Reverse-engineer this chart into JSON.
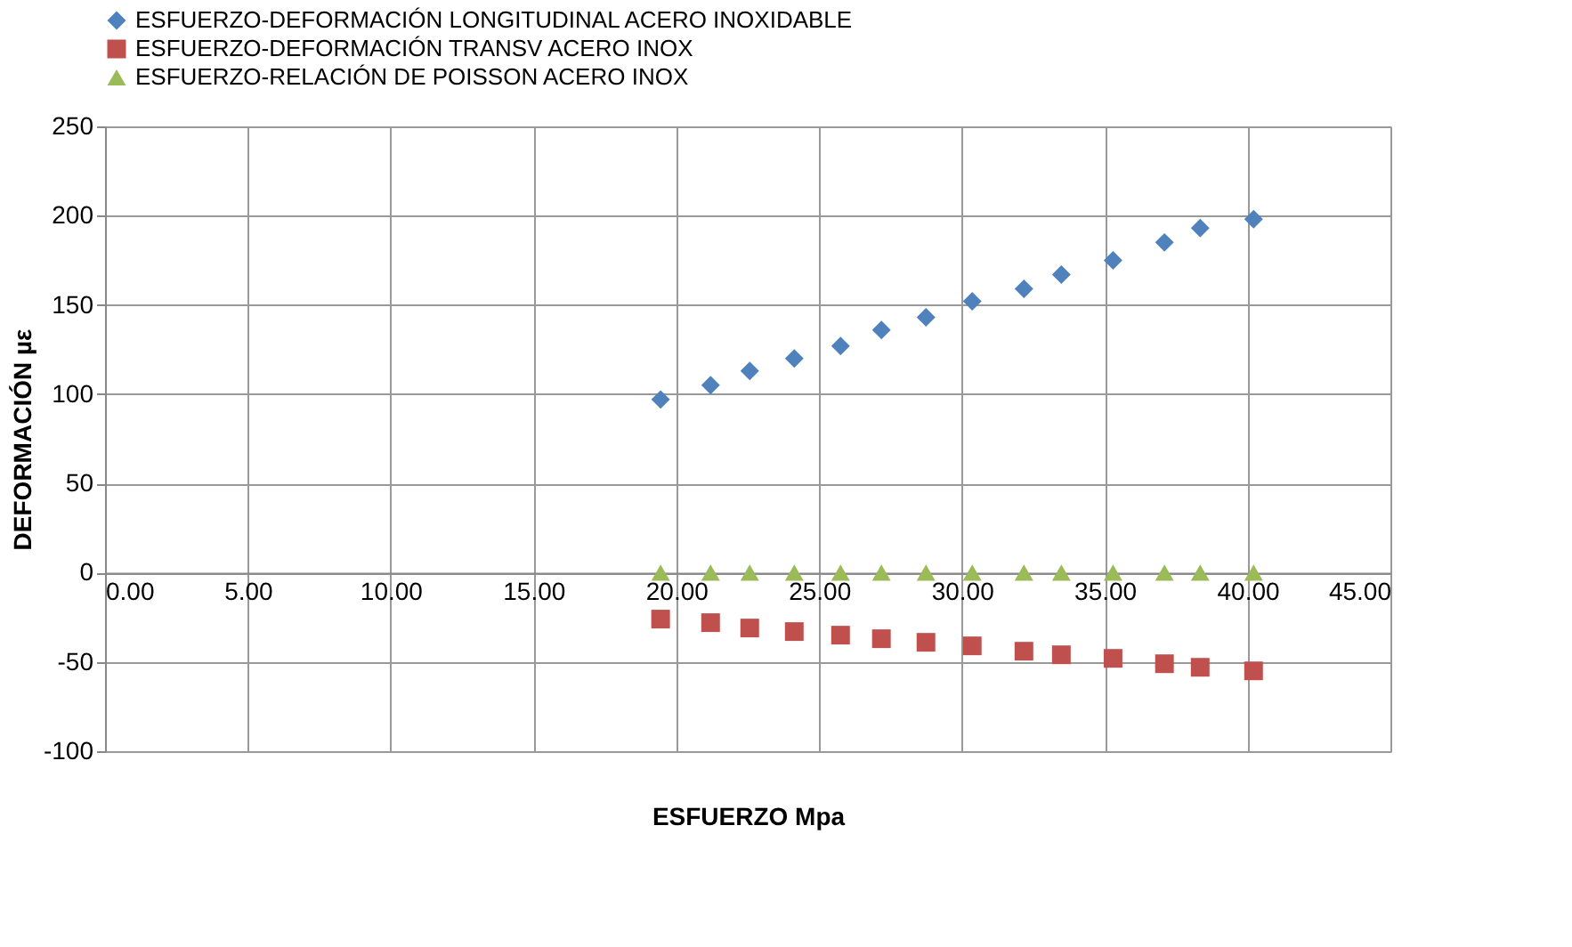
{
  "chart_data": {
    "type": "scatter",
    "xlabel": "ESFUERZO  Mpa",
    "ylabel": "DEFORMACIÓN µε",
    "x": [
      19.45,
      21.2,
      22.57,
      24.13,
      25.75,
      27.18,
      28.74,
      30.36,
      32.17,
      33.48,
      35.29,
      37.09,
      38.34,
      40.21
    ],
    "series": [
      {
        "name": "ESFUERZO-DEFORMACIÓN LONGITUDINAL ACERO INOXIDABLE",
        "color": "#4f81bd",
        "marker": "diamond",
        "values": [
          97,
          105,
          113,
          120,
          127,
          136,
          143,
          152,
          159,
          167,
          175,
          185,
          193,
          198
        ]
      },
      {
        "name": "ESFUERZO-DEFORMACIÓN TRANSV ACERO INOX",
        "color": "#c0504d",
        "marker": "square",
        "values": [
          -26,
          -28,
          -31,
          -33,
          -35,
          -37,
          -39,
          -41,
          -44,
          -46,
          -48,
          -51,
          -53,
          -55
        ]
      },
      {
        "name": "ESFUERZO-RELACIÓN DE POISSON ACERO INOX",
        "color": "#9bbb59",
        "marker": "triangle",
        "values": [
          0,
          0,
          0,
          0,
          0,
          0,
          0,
          0,
          0,
          0,
          0,
          0,
          0,
          0
        ]
      }
    ],
    "xlim": [
      0,
      45
    ],
    "ylim": [
      -100,
      250
    ],
    "xticks": [
      {
        "value": 0,
        "label": "0.00"
      },
      {
        "value": 5,
        "label": "5.00"
      },
      {
        "value": 10,
        "label": "10.00"
      },
      {
        "value": 15,
        "label": "15.00"
      },
      {
        "value": 20,
        "label": "20.00"
      },
      {
        "value": 25,
        "label": "25.00"
      },
      {
        "value": 30,
        "label": "30.00"
      },
      {
        "value": 35,
        "label": "35.00"
      },
      {
        "value": 40,
        "label": "40.00"
      },
      {
        "value": 45,
        "label": "45.00"
      }
    ],
    "yticks": [
      -100,
      -50,
      0,
      50,
      100,
      150,
      200,
      250
    ],
    "grid": true,
    "legend": "top"
  }
}
